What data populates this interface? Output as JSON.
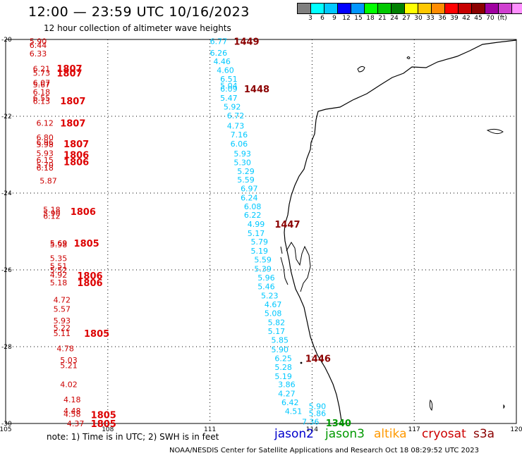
{
  "header": {
    "title": "12:00 — 23:59 UTC 10/16/2023",
    "subtitle": "12 hour collection of altimeter wave heights"
  },
  "scale": {
    "colors": [
      "#808080",
      "#00ffff",
      "#00c8ff",
      "#0000ff",
      "#0096ff",
      "#00ff00",
      "#00c800",
      "#008000",
      "#ffff00",
      "#ffc800",
      "#ff8c00",
      "#ff0000",
      "#c80000",
      "#8b0000",
      "#a000a0",
      "#d040d0",
      "#ff90ff",
      "#000000"
    ],
    "labels": [
      "3",
      "6",
      "9",
      "12",
      "15",
      "18",
      "21",
      "24",
      "27",
      "30",
      "33",
      "36",
      "39",
      "42",
      "45",
      "70",
      "(ft)"
    ]
  },
  "axes": {
    "lon_ticks": [
      "105",
      "108",
      "111",
      "114",
      "117",
      "120"
    ],
    "lat_ticks": [
      "-20",
      "-22",
      "-24",
      "-26",
      "-28",
      "-30"
    ]
  },
  "satellites": [
    {
      "name": "jason2",
      "color": "#0000cc"
    },
    {
      "name": "jason3",
      "color": "#009900"
    },
    {
      "name": "altika",
      "color": "#ff9900"
    },
    {
      "name": "cryosat",
      "color": "#cc0000"
    },
    {
      "name": "s3a",
      "color": "#8b0000"
    }
  ],
  "note": "note:  1) Time is in UTC;  2) SWH is in feet",
  "footer": "NOAA/NESDIS Center for Satellite Applications and Research    Oct 18 08:29:52 UTC 2023",
  "tracks": {
    "cryosat": {
      "color": "#cc0000",
      "time_color": "#dd0000",
      "values": [
        {
          "t": "5.90",
          "lon": 105.7,
          "lat": -20.05
        },
        {
          "t": "6.44",
          "lon": 105.7,
          "lat": -20.15
        },
        {
          "t": "6.33",
          "lon": 105.7,
          "lat": -20.37
        },
        {
          "t": "6.21",
          "lon": 105.8,
          "lat": -20.76
        },
        {
          "t": "5.73",
          "lon": 105.8,
          "lat": -20.87
        },
        {
          "t": "6.07",
          "lon": 105.8,
          "lat": -21.13
        },
        {
          "t": "5.67",
          "lon": 105.8,
          "lat": -21.17
        },
        {
          "t": "6.18",
          "lon": 105.8,
          "lat": -21.37
        },
        {
          "t": "6.55",
          "lon": 105.8,
          "lat": -21.52
        },
        {
          "t": "6.13",
          "lon": 105.8,
          "lat": -21.61
        },
        {
          "t": "6.12",
          "lon": 105.9,
          "lat": -22.17
        },
        {
          "t": "6.80",
          "lon": 105.9,
          "lat": -22.55
        },
        {
          "t": "6.96",
          "lon": 105.9,
          "lat": -22.68
        },
        {
          "t": "5.98",
          "lon": 105.9,
          "lat": -22.73
        },
        {
          "t": "5.93",
          "lon": 105.9,
          "lat": -22.96
        },
        {
          "t": "6.15",
          "lon": 105.9,
          "lat": -23.14
        },
        {
          "t": "5.70",
          "lon": 105.9,
          "lat": -23.27
        },
        {
          "t": "6.18",
          "lon": 105.9,
          "lat": -23.34
        },
        {
          "t": "5.87",
          "lon": 106.0,
          "lat": -23.68
        },
        {
          "t": "5.18",
          "lon": 106.1,
          "lat": -24.43
        },
        {
          "t": "5.90",
          "lon": 106.1,
          "lat": -24.52
        },
        {
          "t": "6.12",
          "lon": 106.1,
          "lat": -24.6
        },
        {
          "t": "5.69",
          "lon": 106.3,
          "lat": -25.3
        },
        {
          "t": "5.98",
          "lon": 106.3,
          "lat": -25.34
        },
        {
          "t": "5.35",
          "lon": 106.3,
          "lat": -25.7
        },
        {
          "t": "5.51",
          "lon": 106.3,
          "lat": -25.9
        },
        {
          "t": "5.52",
          "lon": 106.3,
          "lat": -26.0
        },
        {
          "t": "4.92",
          "lon": 106.3,
          "lat": -26.13
        },
        {
          "t": "5.18",
          "lon": 106.3,
          "lat": -26.33
        },
        {
          "t": "4.72",
          "lon": 106.4,
          "lat": -26.78
        },
        {
          "t": "5.57",
          "lon": 106.4,
          "lat": -27.02
        },
        {
          "t": "5.93",
          "lon": 106.4,
          "lat": -27.32
        },
        {
          "t": "5.22",
          "lon": 106.4,
          "lat": -27.5
        },
        {
          "t": "5.11",
          "lon": 106.4,
          "lat": -27.65
        },
        {
          "t": "4.78",
          "lon": 106.5,
          "lat": -28.05
        },
        {
          "t": "5.03",
          "lon": 106.6,
          "lat": -28.35
        },
        {
          "t": "5.21",
          "lon": 106.6,
          "lat": -28.49
        },
        {
          "t": "4.02",
          "lon": 106.6,
          "lat": -28.98
        },
        {
          "t": "4.18",
          "lon": 106.7,
          "lat": -29.38
        },
        {
          "t": "4.48",
          "lon": 106.7,
          "lat": -29.67
        },
        {
          "t": "4.58",
          "lon": 106.7,
          "lat": -29.75
        },
        {
          "t": "4.37",
          "lon": 106.8,
          "lat": -30.0
        }
      ],
      "times": [
        {
          "t": "1807",
          "lon": 106.5,
          "lat": -20.75
        },
        {
          "t": "1807",
          "lon": 106.5,
          "lat": -20.87
        },
        {
          "t": "1807",
          "lon": 106.6,
          "lat": -21.6
        },
        {
          "t": "1807",
          "lon": 106.6,
          "lat": -22.17
        },
        {
          "t": "1807",
          "lon": 106.7,
          "lat": -22.72
        },
        {
          "t": "1806",
          "lon": 106.7,
          "lat": -23.0
        },
        {
          "t": "1806",
          "lon": 106.7,
          "lat": -23.18
        },
        {
          "t": "1806",
          "lon": 106.9,
          "lat": -24.48
        },
        {
          "t": "1805",
          "lon": 107.0,
          "lat": -25.3
        },
        {
          "t": "1806",
          "lon": 107.1,
          "lat": -26.15
        },
        {
          "t": "1806",
          "lon": 107.1,
          "lat": -26.33
        },
        {
          "t": "1805",
          "lon": 107.3,
          "lat": -27.65
        },
        {
          "t": "1805",
          "lon": 107.5,
          "lat": -29.77
        },
        {
          "t": "1805",
          "lon": 107.5,
          "lat": -30.0
        }
      ]
    },
    "s3a": {
      "color": "#00c8ff",
      "time_color": "#8b0000",
      "values": [
        {
          "t": "6.77",
          "lon": 111.0,
          "lat": -20.05
        },
        {
          "t": "6.26",
          "lon": 111.0,
          "lat": -20.35
        },
        {
          "t": "4.46",
          "lon": 111.1,
          "lat": -20.57
        },
        {
          "t": "4.60",
          "lon": 111.2,
          "lat": -20.8
        },
        {
          "t": "6.51",
          "lon": 111.3,
          "lat": -21.03
        },
        {
          "t": "5.04",
          "lon": 111.3,
          "lat": -21.2
        },
        {
          "t": "6.09",
          "lon": 111.3,
          "lat": -21.28
        },
        {
          "t": "5.47",
          "lon": 111.3,
          "lat": -21.52
        },
        {
          "t": "5.92",
          "lon": 111.4,
          "lat": -21.75
        },
        {
          "t": "6.72",
          "lon": 111.5,
          "lat": -21.98
        },
        {
          "t": "4.73",
          "lon": 111.5,
          "lat": -22.25
        },
        {
          "t": "7.16",
          "lon": 111.6,
          "lat": -22.48
        },
        {
          "t": "6.06",
          "lon": 111.6,
          "lat": -22.72
        },
        {
          "t": "5.93",
          "lon": 111.7,
          "lat": -22.97
        },
        {
          "t": "5.30",
          "lon": 111.7,
          "lat": -23.2
        },
        {
          "t": "5.29",
          "lon": 111.8,
          "lat": -23.43
        },
        {
          "t": "5.59",
          "lon": 111.8,
          "lat": -23.65
        },
        {
          "t": "6.97",
          "lon": 111.9,
          "lat": -23.88
        },
        {
          "t": "6.24",
          "lon": 111.9,
          "lat": -24.12
        },
        {
          "t": "6.08",
          "lon": 112.0,
          "lat": -24.35
        },
        {
          "t": "6.22",
          "lon": 112.0,
          "lat": -24.57
        },
        {
          "t": "4.99",
          "lon": 112.1,
          "lat": -24.81
        },
        {
          "t": "5.17",
          "lon": 112.1,
          "lat": -25.05
        },
        {
          "t": "5.79",
          "lon": 112.2,
          "lat": -25.27
        },
        {
          "t": "5.19",
          "lon": 112.2,
          "lat": -25.5
        },
        {
          "t": "5.59",
          "lon": 112.3,
          "lat": -25.73
        },
        {
          "t": "5.39",
          "lon": 112.3,
          "lat": -25.97
        },
        {
          "t": "5.96",
          "lon": 112.4,
          "lat": -26.2
        },
        {
          "t": "5.46",
          "lon": 112.4,
          "lat": -26.43
        },
        {
          "t": "5.23",
          "lon": 112.5,
          "lat": -26.67
        },
        {
          "t": "4.67",
          "lon": 112.6,
          "lat": -26.9
        },
        {
          "t": "5.08",
          "lon": 112.6,
          "lat": -27.13
        },
        {
          "t": "5.82",
          "lon": 112.7,
          "lat": -27.37
        },
        {
          "t": "5.17",
          "lon": 112.7,
          "lat": -27.6
        },
        {
          "t": "5.85",
          "lon": 112.8,
          "lat": -27.83
        },
        {
          "t": "5.90",
          "lon": 112.8,
          "lat": -28.07
        },
        {
          "t": "6.25",
          "lon": 112.9,
          "lat": -28.3
        },
        {
          "t": "5.28",
          "lon": 112.9,
          "lat": -28.53
        },
        {
          "t": "5.19",
          "lon": 112.9,
          "lat": -28.77
        },
        {
          "t": "3.86",
          "lon": 113.0,
          "lat": -28.98
        },
        {
          "t": "4.27",
          "lon": 113.0,
          "lat": -29.22
        },
        {
          "t": "6.42",
          "lon": 113.1,
          "lat": -29.45
        },
        {
          "t": "4.51",
          "lon": 113.2,
          "lat": -29.68
        }
      ],
      "times": [
        {
          "t": "1449",
          "lon": 111.7,
          "lat": -20.05
        },
        {
          "t": "1448",
          "lon": 112.0,
          "lat": -21.28
        },
        {
          "t": "1447",
          "lon": 112.9,
          "lat": -24.81
        },
        {
          "t": "1446",
          "lon": 113.8,
          "lat": -28.3
        }
      ]
    },
    "jason3": {
      "color": "#00c8ff",
      "time_color": "#009900",
      "values": [
        {
          "t": "5.90",
          "lon": 113.9,
          "lat": -29.55
        },
        {
          "t": "5.86",
          "lon": 113.9,
          "lat": -29.73
        },
        {
          "t": "7.36",
          "lon": 113.7,
          "lat": -29.95
        }
      ],
      "times": [
        {
          "t": "1340",
          "lon": 114.4,
          "lat": -29.98
        }
      ]
    }
  }
}
